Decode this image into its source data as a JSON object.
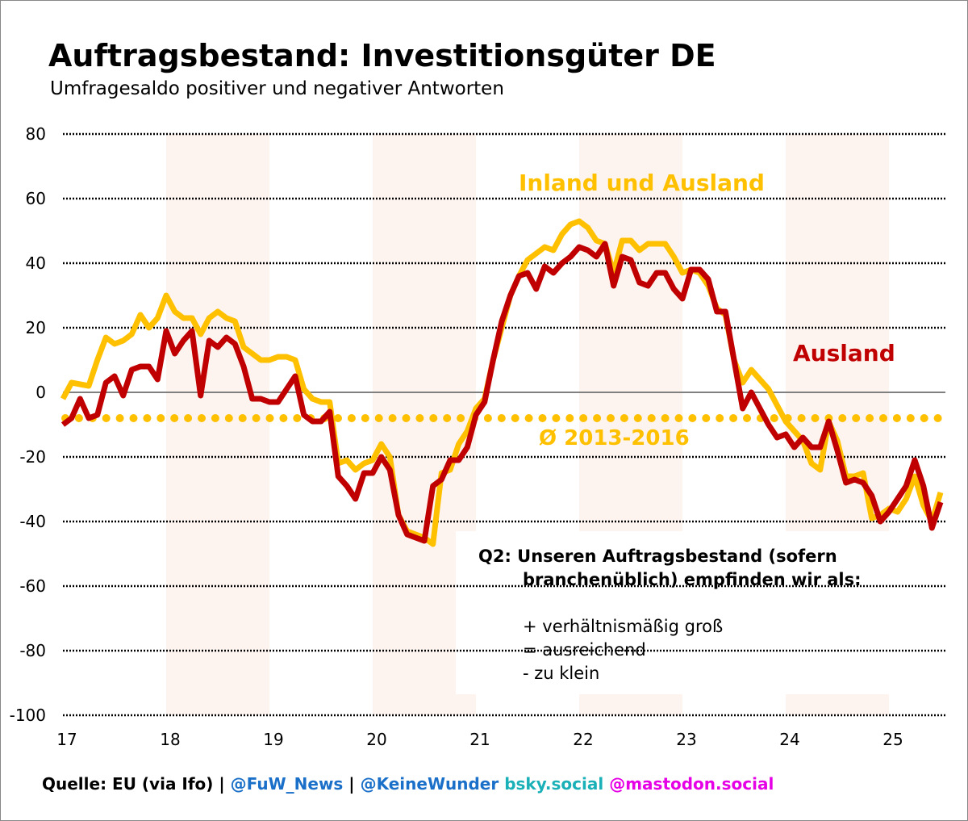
{
  "chart_data": {
    "type": "line",
    "title": "Auftragsbestand: Investitionsgüter DE",
    "subtitle": "Umfragesaldo positiver und negativer Antworten",
    "xlabel": "",
    "ylabel": "",
    "xlim": [
      17,
      25.5
    ],
    "ylim": [
      -100,
      80
    ],
    "x_ticks": [
      "17",
      "18",
      "19",
      "20",
      "21",
      "22",
      "23",
      "24",
      "25"
    ],
    "y_ticks": [
      "80",
      "60",
      "40",
      "20",
      "0",
      "-20",
      "-40",
      "-60",
      "-80",
      "-100"
    ],
    "grid": "horizontal dotted",
    "shaded_years": [
      [
        18,
        19
      ],
      [
        20,
        21
      ],
      [
        22,
        23
      ],
      [
        24,
        25
      ]
    ],
    "start": "2017-01",
    "frequency": "monthly",
    "series": [
      {
        "name": "Inland und Ausland",
        "color": "#ffc000",
        "values": [
          -2,
          3,
          2.5,
          2,
          10,
          17,
          15,
          16,
          18,
          24,
          20,
          23,
          30,
          25,
          23,
          23,
          18,
          23,
          25,
          23,
          22,
          14,
          12,
          10,
          10,
          11,
          11,
          10,
          1,
          -2,
          -3,
          -3,
          -22,
          -21,
          -24,
          -22,
          -21,
          -16,
          -20,
          -38,
          -43,
          -44,
          -45,
          -47,
          -25,
          -24,
          -16,
          -12,
          -5,
          -2,
          10,
          20,
          30,
          36,
          41,
          43,
          45,
          44,
          49,
          52,
          53,
          51,
          47,
          46,
          37,
          47,
          47,
          44,
          46,
          46,
          46,
          42,
          37,
          38,
          37,
          33,
          26,
          24,
          10,
          3,
          7,
          4,
          1,
          -4,
          -9,
          -12,
          -15,
          -22,
          -24,
          -9,
          -15,
          -26,
          -26,
          -25,
          -39,
          -38,
          -36,
          -37,
          -33,
          -26,
          -35,
          -40,
          -31
        ]
      },
      {
        "name": "Ausland",
        "color": "#c00000",
        "values": [
          -10,
          -8,
          -2,
          -8,
          -7,
          3,
          5,
          -1,
          7,
          8,
          8,
          4,
          19,
          12,
          16,
          19,
          -1,
          16,
          14,
          17,
          15,
          8,
          -2,
          -2,
          -3,
          -3,
          1,
          5,
          -7,
          -9,
          -9,
          -6,
          -26,
          -29,
          -33,
          -25,
          -25,
          -20,
          -24,
          -38,
          -44,
          -45,
          -46,
          -29,
          -27,
          -21,
          -21,
          -17,
          -7,
          -3,
          10,
          22,
          30,
          36,
          37,
          32,
          39,
          37,
          40,
          42,
          45,
          44,
          42,
          46,
          33,
          42,
          41,
          34,
          33,
          37,
          37,
          32,
          29,
          38,
          38,
          35,
          25,
          25,
          10,
          -5,
          0,
          -5,
          -10,
          -14,
          -13,
          -17,
          -14,
          -17,
          -17,
          -9,
          -18,
          -28,
          -27,
          -28,
          -32,
          -40,
          -37,
          -33,
          -29,
          -21,
          -29,
          -42,
          -34
        ]
      }
    ],
    "reference_line": {
      "label": "Ø 2013-2016",
      "value": -8,
      "color": "#ffc000"
    },
    "annotations": {
      "question_line1": "Q2: Unseren Auftragsbestand (sofern",
      "question_line2": "branchenüblich) empfinden wir als:",
      "option1": "+ verhältnismäßig groß",
      "option2": "= ausreichend",
      "option3": "- zu klein"
    }
  },
  "footer": {
    "source": "Quelle: EU (via Ifo) |",
    "handle1": "@FuW_News",
    "sep": "|",
    "handle2": "@KeineWunder",
    "bsky": "bsky.social",
    "mastodon": "@mastodon.social",
    "colors": {
      "source": "#000000",
      "handle1": "#1a6fc9",
      "handle2": "#1a6fc9",
      "bsky": "#1ab0b8",
      "mastodon": "#e600e6"
    }
  }
}
